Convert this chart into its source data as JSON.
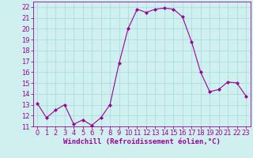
{
  "x": [
    0,
    1,
    2,
    3,
    4,
    5,
    6,
    7,
    8,
    9,
    10,
    11,
    12,
    13,
    14,
    15,
    16,
    17,
    18,
    19,
    20,
    21,
    22,
    23
  ],
  "y": [
    13.1,
    11.8,
    12.5,
    13.0,
    11.2,
    11.6,
    11.1,
    11.8,
    13.0,
    16.8,
    20.0,
    21.8,
    21.5,
    21.8,
    21.9,
    21.8,
    21.1,
    18.8,
    16.0,
    14.2,
    14.4,
    15.1,
    15.0,
    13.8
  ],
  "line_color": "#990099",
  "marker": "D",
  "marker_size": 2.0,
  "bg_color": "#d0f0f0",
  "grid_color": "#aadddd",
  "xlabel": "Windchill (Refroidissement éolien,°C)",
  "xlabel_color": "#990099",
  "xlabel_fontsize": 6.5,
  "tick_color": "#990099",
  "tick_fontsize": 6.0,
  "ylim": [
    11,
    22.5
  ],
  "xlim": [
    -0.5,
    23.5
  ],
  "yticks": [
    11,
    12,
    13,
    14,
    15,
    16,
    17,
    18,
    19,
    20,
    21,
    22
  ],
  "xticks": [
    0,
    1,
    2,
    3,
    4,
    5,
    6,
    7,
    8,
    9,
    10,
    11,
    12,
    13,
    14,
    15,
    16,
    17,
    18,
    19,
    20,
    21,
    22,
    23
  ]
}
